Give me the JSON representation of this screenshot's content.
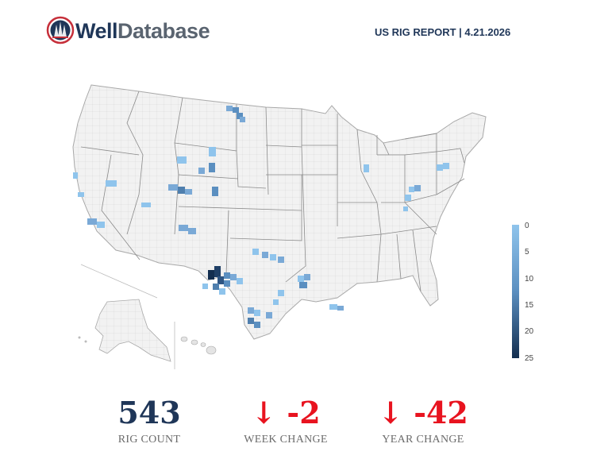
{
  "header": {
    "brand_strong": "Well",
    "brand_rest": "Database",
    "report_title": "US RIG REPORT | 4.21.2026"
  },
  "colors": {
    "brand_navy": "#1f3658",
    "brand_gray": "#5a6470",
    "negative_red": "#e8131f",
    "map_base": "#f2f2f2",
    "map_border": "#a8a8a8",
    "scale_low": "#8fc4ec",
    "scale_mid": "#5b8fc0",
    "scale_high": "#132e4f"
  },
  "legend": {
    "ticks": [
      "0",
      "5",
      "10",
      "15",
      "20",
      "25"
    ],
    "min": 0,
    "max": 25
  },
  "stats": {
    "rig_count": {
      "value": "543",
      "label": "RIG COUNT"
    },
    "week_change": {
      "arrow": "↓",
      "value": "-2",
      "label": "WEEK CHANGE"
    },
    "year_change": {
      "arrow": "↓",
      "value": "-42",
      "label": "YEAR CHANGE"
    }
  }
}
